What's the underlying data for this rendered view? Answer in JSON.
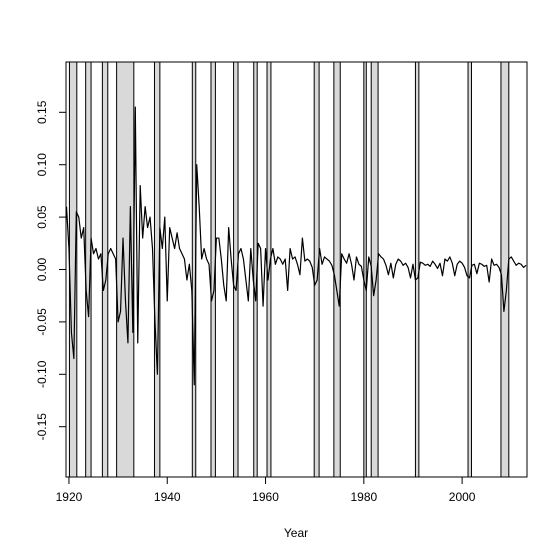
{
  "chart_data": {
    "type": "line",
    "xlabel": "Year",
    "xlim": [
      1919.4,
      2013.2
    ],
    "ylim": [
      -0.198,
      0.198
    ],
    "xticks": [
      1920,
      1940,
      1960,
      1980,
      2000
    ],
    "yticks": [
      -0.15,
      {
        "value": -0.1,
        "label": "-0.10"
      },
      -0.05,
      {
        "value": 0,
        "label": "0.00"
      },
      0.05,
      {
        "value": 0.1,
        "label": "0.10"
      },
      0.15
    ],
    "shaded_periods": [
      [
        1920.1,
        1921.6
      ],
      [
        1923.4,
        1924.5
      ],
      [
        1926.8,
        1927.9
      ],
      [
        1929.7,
        1933.2
      ],
      [
        1937.4,
        1938.5
      ],
      [
        1945.1,
        1945.8
      ],
      [
        1948.9,
        1949.8
      ],
      [
        1953.5,
        1954.4
      ],
      [
        1957.6,
        1958.3
      ],
      [
        1960.3,
        1961.1
      ],
      [
        1969.9,
        1970.9
      ],
      [
        1973.9,
        1975.2
      ],
      [
        1980.0,
        1980.5
      ],
      [
        1981.5,
        1982.9
      ],
      [
        1990.5,
        1991.2
      ],
      [
        2001.2,
        2001.9
      ],
      [
        2007.9,
        2009.5
      ]
    ],
    "shade_color": "#d9d9d9",
    "color": "#000000",
    "x": [
      1919.5,
      1920,
      1920.5,
      1921,
      1921.5,
      1922,
      1922.5,
      1923,
      1923.5,
      1924,
      1924.5,
      1925,
      1925.5,
      1926,
      1926.5,
      1927,
      1927.5,
      1928,
      1928.5,
      1929,
      1929.5,
      1930,
      1930.5,
      1931,
      1931.5,
      1932,
      1932.5,
      1933,
      1933.5,
      1934,
      1934.5,
      1935,
      1935.5,
      1936,
      1936.5,
      1937,
      1937.5,
      1938,
      1938.5,
      1939,
      1939.5,
      1940,
      1940.5,
      1941,
      1941.5,
      1942,
      1942.5,
      1943,
      1943.5,
      1944,
      1944.5,
      1945,
      1945.5,
      1946,
      1946.5,
      1947,
      1947.5,
      1948,
      1948.5,
      1949,
      1949.5,
      1950,
      1950.5,
      1951,
      1951.5,
      1952,
      1952.5,
      1953,
      1953.5,
      1954,
      1954.5,
      1955,
      1955.5,
      1956,
      1956.5,
      1957,
      1957.5,
      1958,
      1958.5,
      1959,
      1959.5,
      1960,
      1960.5,
      1961,
      1961.5,
      1962,
      1962.5,
      1963,
      1963.5,
      1964,
      1964.5,
      1965,
      1965.5,
      1966,
      1966.5,
      1967,
      1967.5,
      1968,
      1968.5,
      1969,
      1969.5,
      1970,
      1970.5,
      1971,
      1971.5,
      1972,
      1972.5,
      1973,
      1973.5,
      1974,
      1974.5,
      1975,
      1975.5,
      1976,
      1976.5,
      1977,
      1977.5,
      1978,
      1978.5,
      1979,
      1979.5,
      1980,
      1980.5,
      1981,
      1981.5,
      1982,
      1982.5,
      1983,
      1983.5,
      1984,
      1984.5,
      1985,
      1985.5,
      1986,
      1986.5,
      1987,
      1987.5,
      1988,
      1988.5,
      1989,
      1989.5,
      1990,
      1990.5,
      1991,
      1991.5,
      1992,
      1992.5,
      1993,
      1993.5,
      1994,
      1994.5,
      1995,
      1995.5,
      1996,
      1996.5,
      1997,
      1997.5,
      1998,
      1998.5,
      1999,
      1999.5,
      2000,
      2000.5,
      2001,
      2001.5,
      2002,
      2002.5,
      2003,
      2003.5,
      2004,
      2004.5,
      2005,
      2005.5,
      2006,
      2006.5,
      2007,
      2007.5,
      2008,
      2008.5,
      2009,
      2009.5,
      2010,
      2010.5,
      2011,
      2011.5,
      2012,
      2012.5,
      2013
    ],
    "values": [
      0.06,
      0.02,
      -0.06,
      -0.085,
      0.055,
      0.05,
      0.03,
      0.04,
      -0.02,
      -0.045,
      0.03,
      0.015,
      0.02,
      0.01,
      0.015,
      -0.02,
      -0.01,
      0.015,
      0.02,
      0.015,
      0.01,
      -0.05,
      -0.04,
      0.03,
      -0.03,
      -0.07,
      0.06,
      -0.06,
      0.155,
      -0.07,
      0.08,
      0.03,
      0.06,
      0.04,
      0.05,
      0.02,
      -0.05,
      -0.1,
      0.04,
      0.02,
      0.05,
      -0.03,
      0.04,
      0.03,
      0.02,
      0.035,
      0.02,
      0.015,
      0.01,
      -0.01,
      0.005,
      -0.02,
      -0.11,
      0.1,
      0.06,
      0.01,
      0.02,
      0.01,
      0.005,
      -0.03,
      -0.02,
      0.03,
      0.03,
      0.01,
      -0.015,
      -0.03,
      0.04,
      0.01,
      -0.015,
      -0.02,
      0.015,
      0.02,
      0.01,
      -0.01,
      -0.03,
      0.02,
      -0.01,
      -0.03,
      0.025,
      0.02,
      -0.035,
      0.02,
      -0.01,
      0.01,
      0.02,
      0.005,
      0.012,
      0.01,
      0.005,
      0.01,
      -0.02,
      0.02,
      0.01,
      0.012,
      0.005,
      -0.005,
      0.03,
      0.008,
      0.01,
      0.008,
      0.002,
      -0.015,
      -0.01,
      0.02,
      0.005,
      0.012,
      0.01,
      0.008,
      0.004,
      -0.005,
      -0.02,
      -0.035,
      0.015,
      0.01,
      0.006,
      0.015,
      0.005,
      -0.01,
      0.012,
      0.005,
      0.003,
      -0.01,
      -0.02,
      0.012,
      0.003,
      -0.025,
      -0.01,
      0.015,
      0.012,
      0.01,
      0.004,
      -0.005,
      0.006,
      -0.008,
      0.005,
      0.01,
      0.008,
      0.004,
      0.006,
      0.002,
      -0.008,
      0.005,
      -0.01,
      -0.008,
      0.007,
      0.006,
      0.004,
      0.005,
      0.003,
      0.008,
      0.005,
      0.001,
      0.006,
      -0.006,
      0.01,
      0.008,
      0.012,
      0.006,
      -0.006,
      0.005,
      0.008,
      0.006,
      0.002,
      -0.006,
      -0.008,
      0.004,
      0.005,
      -0.004,
      0.006,
      0.005,
      0.003,
      0.004,
      -0.012,
      0.01,
      0.004,
      0.005,
      0.002,
      -0.005,
      -0.04,
      -0.02,
      0.01,
      0.012,
      0.008,
      0.004,
      0.006,
      0.005,
      0.002,
      0.004
    ]
  }
}
